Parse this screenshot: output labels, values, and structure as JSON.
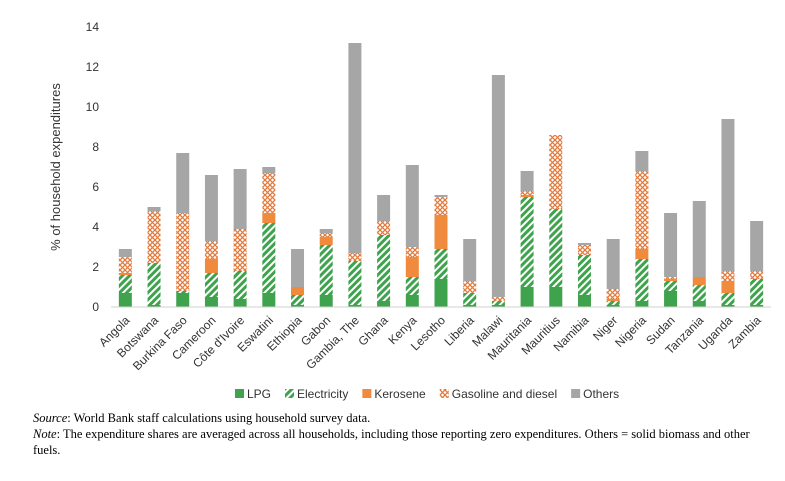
{
  "chart_data": {
    "type": "bar",
    "stacked": true,
    "title": "",
    "xlabel": "",
    "ylabel": "% of household expenditures",
    "ylim": [
      0,
      14
    ],
    "yticks": [
      0,
      2,
      4,
      6,
      8,
      10,
      12,
      14
    ],
    "grid": false,
    "legend_position": "bottom",
    "categories": [
      "Angola",
      "Botswana",
      "Burkina Faso",
      "Cameroon",
      "Côte d'Ivoire",
      "Eswatini",
      "Ethiopia",
      "Gabon",
      "Gambia, The",
      "Ghana",
      "Kenya",
      "Lesotho",
      "Liberia",
      "Malawi",
      "Mauritania",
      "Mauritius",
      "Namibia",
      "Niger",
      "Nigeria",
      "Sudan",
      "Tanzania",
      "Uganda",
      "Zambia"
    ],
    "series": [
      {
        "name": "LPG",
        "color": "#3fa34d",
        "pattern": "solid",
        "values": [
          0.7,
          0.1,
          0.7,
          0.5,
          0.4,
          0.7,
          0.1,
          0.6,
          0.1,
          0.3,
          0.6,
          1.4,
          0.1,
          0.1,
          1.0,
          1.0,
          0.6,
          0.1,
          0.3,
          0.8,
          0.3,
          0.1,
          0.1
        ]
      },
      {
        "name": "Electricity",
        "color": "#3fa34d",
        "pattern": "diagonal",
        "values": [
          0.9,
          2.1,
          0.1,
          1.2,
          1.4,
          3.5,
          0.5,
          2.5,
          2.2,
          3.3,
          0.9,
          1.5,
          0.6,
          0.2,
          4.5,
          3.9,
          2.0,
          0.2,
          2.1,
          0.5,
          0.8,
          0.6,
          1.3
        ]
      },
      {
        "name": "Kerosene",
        "color": "#f08a3c",
        "pattern": "solid",
        "values": [
          0.1,
          0.0,
          0.0,
          0.7,
          0.0,
          0.5,
          0.4,
          0.4,
          0.0,
          0.0,
          1.0,
          1.7,
          0.0,
          0.0,
          0.1,
          0.0,
          0.0,
          0.1,
          0.5,
          0.1,
          0.4,
          0.6,
          0.0
        ]
      },
      {
        "name": "Gasoline and diesel",
        "color": "#e88a4a",
        "pattern": "crosshatch",
        "values": [
          0.8,
          2.6,
          3.9,
          0.9,
          2.1,
          2.0,
          0.0,
          0.2,
          0.4,
          0.7,
          0.5,
          0.9,
          0.6,
          0.2,
          0.2,
          3.7,
          0.5,
          0.5,
          3.9,
          0.1,
          0.0,
          0.5,
          0.4
        ]
      },
      {
        "name": "Others",
        "color": "#a6a6a6",
        "pattern": "solid",
        "values": [
          0.4,
          0.2,
          3.0,
          3.3,
          3.0,
          0.3,
          1.9,
          0.2,
          10.5,
          1.3,
          4.1,
          0.1,
          2.1,
          11.1,
          1.0,
          0.0,
          0.1,
          2.5,
          1.0,
          3.2,
          3.8,
          7.6,
          2.5
        ]
      }
    ]
  },
  "notes": {
    "source_label": "Source",
    "source_text": ": World Bank staff calculations using household survey data.",
    "note_label": "Note",
    "note_text": ": The expenditure shares are averaged across all households, including those reporting zero expenditures. Others = solid biomass and other fuels."
  }
}
